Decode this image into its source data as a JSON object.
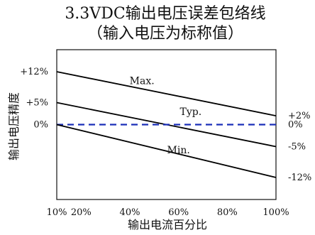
{
  "chart_data": {
    "type": "line",
    "title": [
      "3.3VDC输出电压误差包络线",
      "（输入电压为标称值）"
    ],
    "xlabel": "输出电流百分比",
    "ylabel": "输出电压精度",
    "x_ticks": [
      {
        "value": 10,
        "label": "10%"
      },
      {
        "value": 20,
        "label": "20%"
      },
      {
        "value": 40,
        "label": "40%"
      },
      {
        "value": 60,
        "label": "60%"
      },
      {
        "value": 80,
        "label": "80%"
      },
      {
        "value": 100,
        "label": "100%"
      }
    ],
    "y_ticks_left": [
      {
        "value": 12,
        "label": "+12%"
      },
      {
        "value": 5,
        "label": "+5%"
      },
      {
        "value": 0,
        "label": "0%"
      }
    ],
    "y_ticks_right": [
      {
        "value": 2,
        "label": "+2%"
      },
      {
        "value": 0,
        "label": "0%"
      },
      {
        "value": -5,
        "label": "-5%"
      },
      {
        "value": -12,
        "label": "-12%"
      }
    ],
    "xlim": [
      10,
      100
    ],
    "ylim": [
      -17,
      17
    ],
    "grid": false,
    "series": [
      {
        "name": "Max.",
        "x": [
          10,
          100
        ],
        "y": [
          12,
          2
        ],
        "color": "#000000",
        "style": "solid",
        "label_at": [
          45,
          9.2
        ]
      },
      {
        "name": "Typ.",
        "x": [
          10,
          100
        ],
        "y": [
          5,
          -5
        ],
        "color": "#000000",
        "style": "solid",
        "label_at": [
          65,
          2.2
        ]
      },
      {
        "name": "",
        "x": [
          10,
          100
        ],
        "y": [
          0,
          0
        ],
        "color": "#1a2fb8",
        "style": "dashed"
      },
      {
        "name": "Min.",
        "x": [
          10,
          100
        ],
        "y": [
          0,
          -12
        ],
        "color": "#000000",
        "style": "solid",
        "label_at": [
          60,
          -6.5
        ]
      }
    ]
  }
}
